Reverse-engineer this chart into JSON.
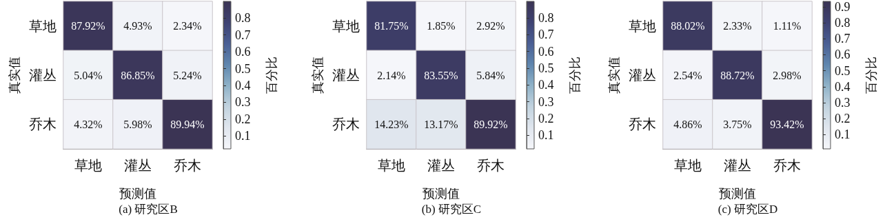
{
  "chart_data": [
    {
      "type": "heatmap",
      "title": "(a) 研究区B",
      "xlabel": "预测值",
      "ylabel": "真实值",
      "clabel": "百分比",
      "categories": [
        "草地",
        "灌丛",
        "乔木"
      ],
      "y_categories": [
        "草地",
        "灌丛",
        "乔木"
      ],
      "cells": [
        [
          0.8792,
          0.0493,
          0.0234
        ],
        [
          0.0504,
          0.8685,
          0.0524
        ],
        [
          0.0432,
          0.0598,
          0.8994
        ]
      ],
      "cell_labels": [
        [
          "87.92%",
          "4.93%",
          "2.34%"
        ],
        [
          "5.04%",
          "86.85%",
          "5.24%"
        ],
        [
          "4.32%",
          "5.98%",
          "89.94%"
        ]
      ],
      "clim": [
        0.0234,
        0.8994
      ],
      "cticks": [
        0.1,
        0.2,
        0.3,
        0.4,
        0.5,
        0.6,
        0.7,
        0.8
      ]
    },
    {
      "type": "heatmap",
      "title": "(b) 研究区C",
      "xlabel": "预测值",
      "ylabel": "真实值",
      "clabel": "百分比",
      "categories": [
        "草地",
        "灌丛",
        "乔木"
      ],
      "y_categories": [
        "草地",
        "灌丛",
        "乔木"
      ],
      "cells": [
        [
          0.8175,
          0.0185,
          0.0292
        ],
        [
          0.0214,
          0.8355,
          0.0584
        ],
        [
          0.1423,
          0.1317,
          0.8992
        ]
      ],
      "cell_labels": [
        [
          "81.75%",
          "1.85%",
          "2.92%"
        ],
        [
          "2.14%",
          "83.55%",
          "5.84%"
        ],
        [
          "14.23%",
          "13.17%",
          "89.92%"
        ]
      ],
      "clim": [
        0.0185,
        0.8992
      ],
      "cticks": [
        0.1,
        0.2,
        0.3,
        0.4,
        0.5,
        0.6,
        0.7,
        0.8
      ]
    },
    {
      "type": "heatmap",
      "title": "(c) 研究区D",
      "xlabel": "预测值",
      "ylabel": "真实值",
      "clabel": "百分比",
      "categories": [
        "草地",
        "灌丛",
        "乔木"
      ],
      "y_categories": [
        "草地",
        "灌丛",
        "乔木"
      ],
      "cells": [
        [
          0.8802,
          0.0233,
          0.0111
        ],
        [
          0.0254,
          0.8872,
          0.0298
        ],
        [
          0.0486,
          0.0375,
          0.9342
        ]
      ],
      "cell_labels": [
        [
          "88.02%",
          "2.33%",
          "1.11%"
        ],
        [
          "2.54%",
          "88.72%",
          "2.98%"
        ],
        [
          "4.86%",
          "3.75%",
          "93.42%"
        ]
      ],
      "clim": [
        0.0111,
        0.9342
      ],
      "cticks": [
        0.1,
        0.2,
        0.3,
        0.4,
        0.5,
        0.6,
        0.7,
        0.8,
        0.9
      ]
    }
  ]
}
